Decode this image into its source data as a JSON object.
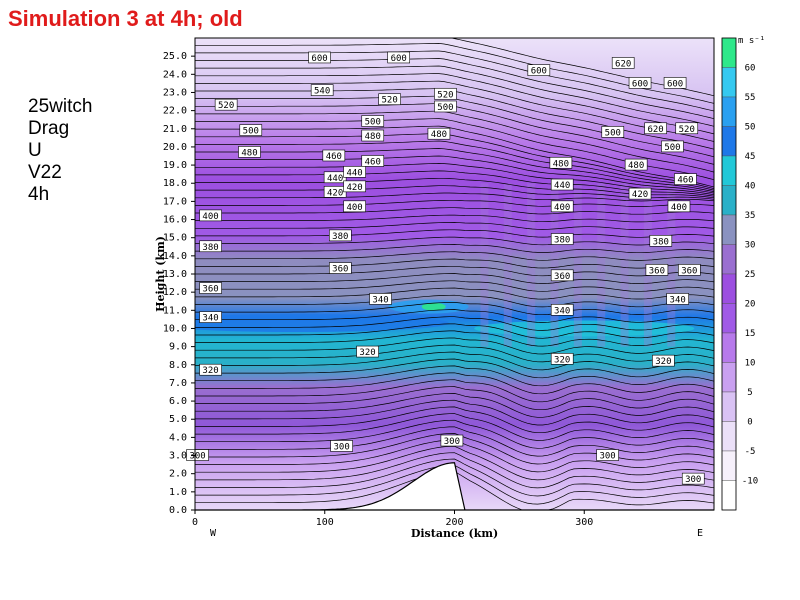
{
  "title": "Simulation 3 at 4h; old",
  "side_labels": [
    "25witch",
    "Drag",
    "U",
    "V22",
    "4h"
  ],
  "chart_data": {
    "type": "heatmap",
    "xlabel": "Distance (km)",
    "ylabel": "Height (km)",
    "x_ticks": [
      "0",
      "100",
      "200",
      "300"
    ],
    "x_edge_labels": [
      "W",
      "E"
    ],
    "y_ticks": [
      "0.0",
      "1.0",
      "2.0",
      "3.0",
      "4.0",
      "5.0",
      "6.0",
      "7.0",
      "8.0",
      "9.0",
      "10.0",
      "11.0",
      "12.0",
      "13.0",
      "14.0",
      "15.0",
      "16.0",
      "17.0",
      "18.0",
      "19.0",
      "20.0",
      "21.0",
      "22.0",
      "23.0",
      "24.0",
      "25.0"
    ],
    "xlim": [
      0,
      400
    ],
    "ylim": [
      0,
      26
    ],
    "colorbar": {
      "unit": "m s⁻¹",
      "levels": [
        60,
        55,
        50,
        45,
        40,
        35,
        30,
        25,
        20,
        15,
        10,
        5,
        0,
        -5,
        -10
      ],
      "level_labels": [
        "60",
        "55",
        "50",
        "45",
        "40",
        "35",
        "30",
        "25",
        "20",
        "15",
        "10",
        "5",
        "0",
        "-5",
        "-10"
      ],
      "colors": [
        "#2ee88a",
        "#35c9f0",
        "#2aa0f0",
        "#1e78e8",
        "#22c8d8",
        "#2ab0c8",
        "#8a92c0",
        "#9a6fd0",
        "#9c4fe0",
        "#a05ae6",
        "#b77aeb",
        "#c9a0f0",
        "#d9c2f4",
        "#ebe0f8",
        "#f6f0fb",
        "#ffffff"
      ]
    },
    "isentrope_labels": [
      {
        "x": 96,
        "y": 24.9,
        "text": "600"
      },
      {
        "x": 157,
        "y": 24.9,
        "text": "600"
      },
      {
        "x": 98,
        "y": 23.1,
        "text": "540"
      },
      {
        "x": 150,
        "y": 22.6,
        "text": "520"
      },
      {
        "x": 193,
        "y": 22.9,
        "text": "520"
      },
      {
        "x": 24,
        "y": 22.3,
        "text": "520"
      },
      {
        "x": 193,
        "y": 22.2,
        "text": "500"
      },
      {
        "x": 43,
        "y": 20.9,
        "text": "500"
      },
      {
        "x": 137,
        "y": 21.4,
        "text": "500"
      },
      {
        "x": 137,
        "y": 20.6,
        "text": "480"
      },
      {
        "x": 188,
        "y": 20.7,
        "text": "480"
      },
      {
        "x": 42,
        "y": 19.7,
        "text": "480"
      },
      {
        "x": 107,
        "y": 19.5,
        "text": "460"
      },
      {
        "x": 137,
        "y": 19.2,
        "text": "460"
      },
      {
        "x": 108,
        "y": 18.3,
        "text": "440"
      },
      {
        "x": 123,
        "y": 18.6,
        "text": "440"
      },
      {
        "x": 108,
        "y": 17.5,
        "text": "420"
      },
      {
        "x": 123,
        "y": 17.8,
        "text": "420"
      },
      {
        "x": 12,
        "y": 16.2,
        "text": "400"
      },
      {
        "x": 123,
        "y": 16.7,
        "text": "400"
      },
      {
        "x": 12,
        "y": 14.5,
        "text": "380"
      },
      {
        "x": 112,
        "y": 15.1,
        "text": "380"
      },
      {
        "x": 12,
        "y": 12.2,
        "text": "360"
      },
      {
        "x": 112,
        "y": 13.3,
        "text": "360"
      },
      {
        "x": 143,
        "y": 11.6,
        "text": "340"
      },
      {
        "x": 12,
        "y": 10.6,
        "text": "340"
      },
      {
        "x": 133,
        "y": 8.7,
        "text": "320"
      },
      {
        "x": 12,
        "y": 7.7,
        "text": "320"
      },
      {
        "x": 113,
        "y": 3.5,
        "text": "300"
      },
      {
        "x": 2,
        "y": 3.0,
        "text": "300"
      },
      {
        "x": 198,
        "y": 3.8,
        "text": "300"
      },
      {
        "x": 282,
        "y": 19.1,
        "text": "480"
      },
      {
        "x": 283,
        "y": 17.9,
        "text": "440"
      },
      {
        "x": 283,
        "y": 16.7,
        "text": "400"
      },
      {
        "x": 283,
        "y": 14.9,
        "text": "380"
      },
      {
        "x": 283,
        "y": 12.9,
        "text": "360"
      },
      {
        "x": 283,
        "y": 11.0,
        "text": "340"
      },
      {
        "x": 283,
        "y": 8.3,
        "text": "320"
      },
      {
        "x": 318,
        "y": 3.0,
        "text": "300"
      },
      {
        "x": 265,
        "y": 24.2,
        "text": "600"
      },
      {
        "x": 330,
        "y": 24.6,
        "text": "620"
      },
      {
        "x": 343,
        "y": 23.5,
        "text": "600"
      },
      {
        "x": 370,
        "y": 23.5,
        "text": "600"
      },
      {
        "x": 322,
        "y": 20.8,
        "text": "500"
      },
      {
        "x": 355,
        "y": 21.0,
        "text": "620"
      },
      {
        "x": 379,
        "y": 21.0,
        "text": "520"
      },
      {
        "x": 368,
        "y": 20.0,
        "text": "500"
      },
      {
        "x": 340,
        "y": 19.0,
        "text": "480"
      },
      {
        "x": 378,
        "y": 18.2,
        "text": "460"
      },
      {
        "x": 343,
        "y": 17.4,
        "text": "420"
      },
      {
        "x": 373,
        "y": 16.7,
        "text": "400"
      },
      {
        "x": 359,
        "y": 14.8,
        "text": "380"
      },
      {
        "x": 356,
        "y": 13.2,
        "text": "360"
      },
      {
        "x": 381,
        "y": 13.2,
        "text": "360"
      },
      {
        "x": 372,
        "y": 11.6,
        "text": "340"
      },
      {
        "x": 361,
        "y": 8.2,
        "text": "320"
      },
      {
        "x": 384,
        "y": 1.7,
        "text": "300"
      }
    ],
    "terrain": {
      "peak_x": 200,
      "peak_height": 2.6
    }
  }
}
